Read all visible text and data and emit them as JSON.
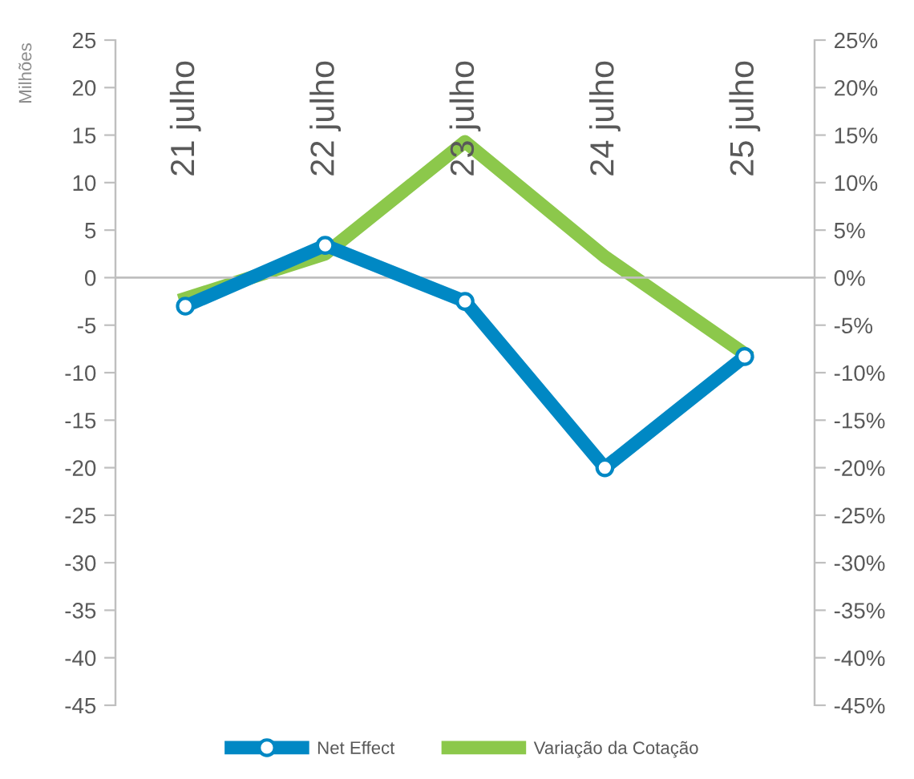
{
  "chart_data": {
    "type": "line",
    "ylabel": "Milhões",
    "categories": [
      "21 julho",
      "22 julho",
      "23 julho",
      "24 julho",
      "25 julho"
    ],
    "series": [
      {
        "name": "Net Effect",
        "color": "#0088c4",
        "values": [
          -3,
          3.4,
          -2.5,
          -20,
          -8.3
        ],
        "marker": "circle"
      },
      {
        "name": "Variação da Cotação",
        "color": "#8cc84b",
        "values": [
          -2.2,
          2.5,
          14.3,
          2.2,
          -8
        ],
        "axis": "y2",
        "marker": "none"
      }
    ],
    "ylim": [
      -45,
      25
    ],
    "yticks": [
      -45,
      -40,
      -35,
      -30,
      -25,
      -20,
      -15,
      -10,
      -5,
      0,
      5,
      10,
      15,
      20,
      25
    ],
    "y2lim": [
      -45,
      25
    ],
    "y2ticks": [
      {
        "value": -45,
        "label": "-45%"
      },
      {
        "value": -40,
        "label": "-40%"
      },
      {
        "value": -35,
        "label": "-35%"
      },
      {
        "value": -30,
        "label": "-30%"
      },
      {
        "value": -25,
        "label": "-25%"
      },
      {
        "value": -20,
        "label": "-20%"
      },
      {
        "value": -15,
        "label": "-15%"
      },
      {
        "value": -10,
        "label": "-10%"
      },
      {
        "value": -5,
        "label": "-5%"
      },
      {
        "value": 0,
        "label": "0%"
      },
      {
        "value": 5,
        "label": "5%"
      },
      {
        "value": 10,
        "label": "10%"
      },
      {
        "value": 15,
        "label": "15%"
      },
      {
        "value": 20,
        "label": "20%"
      },
      {
        "value": 25,
        "label": "25%"
      }
    ],
    "ref_lines": [
      {
        "axis": "y",
        "value": 0,
        "color": "#bfbfbf"
      }
    ],
    "grid": false,
    "legend": "bottom"
  }
}
